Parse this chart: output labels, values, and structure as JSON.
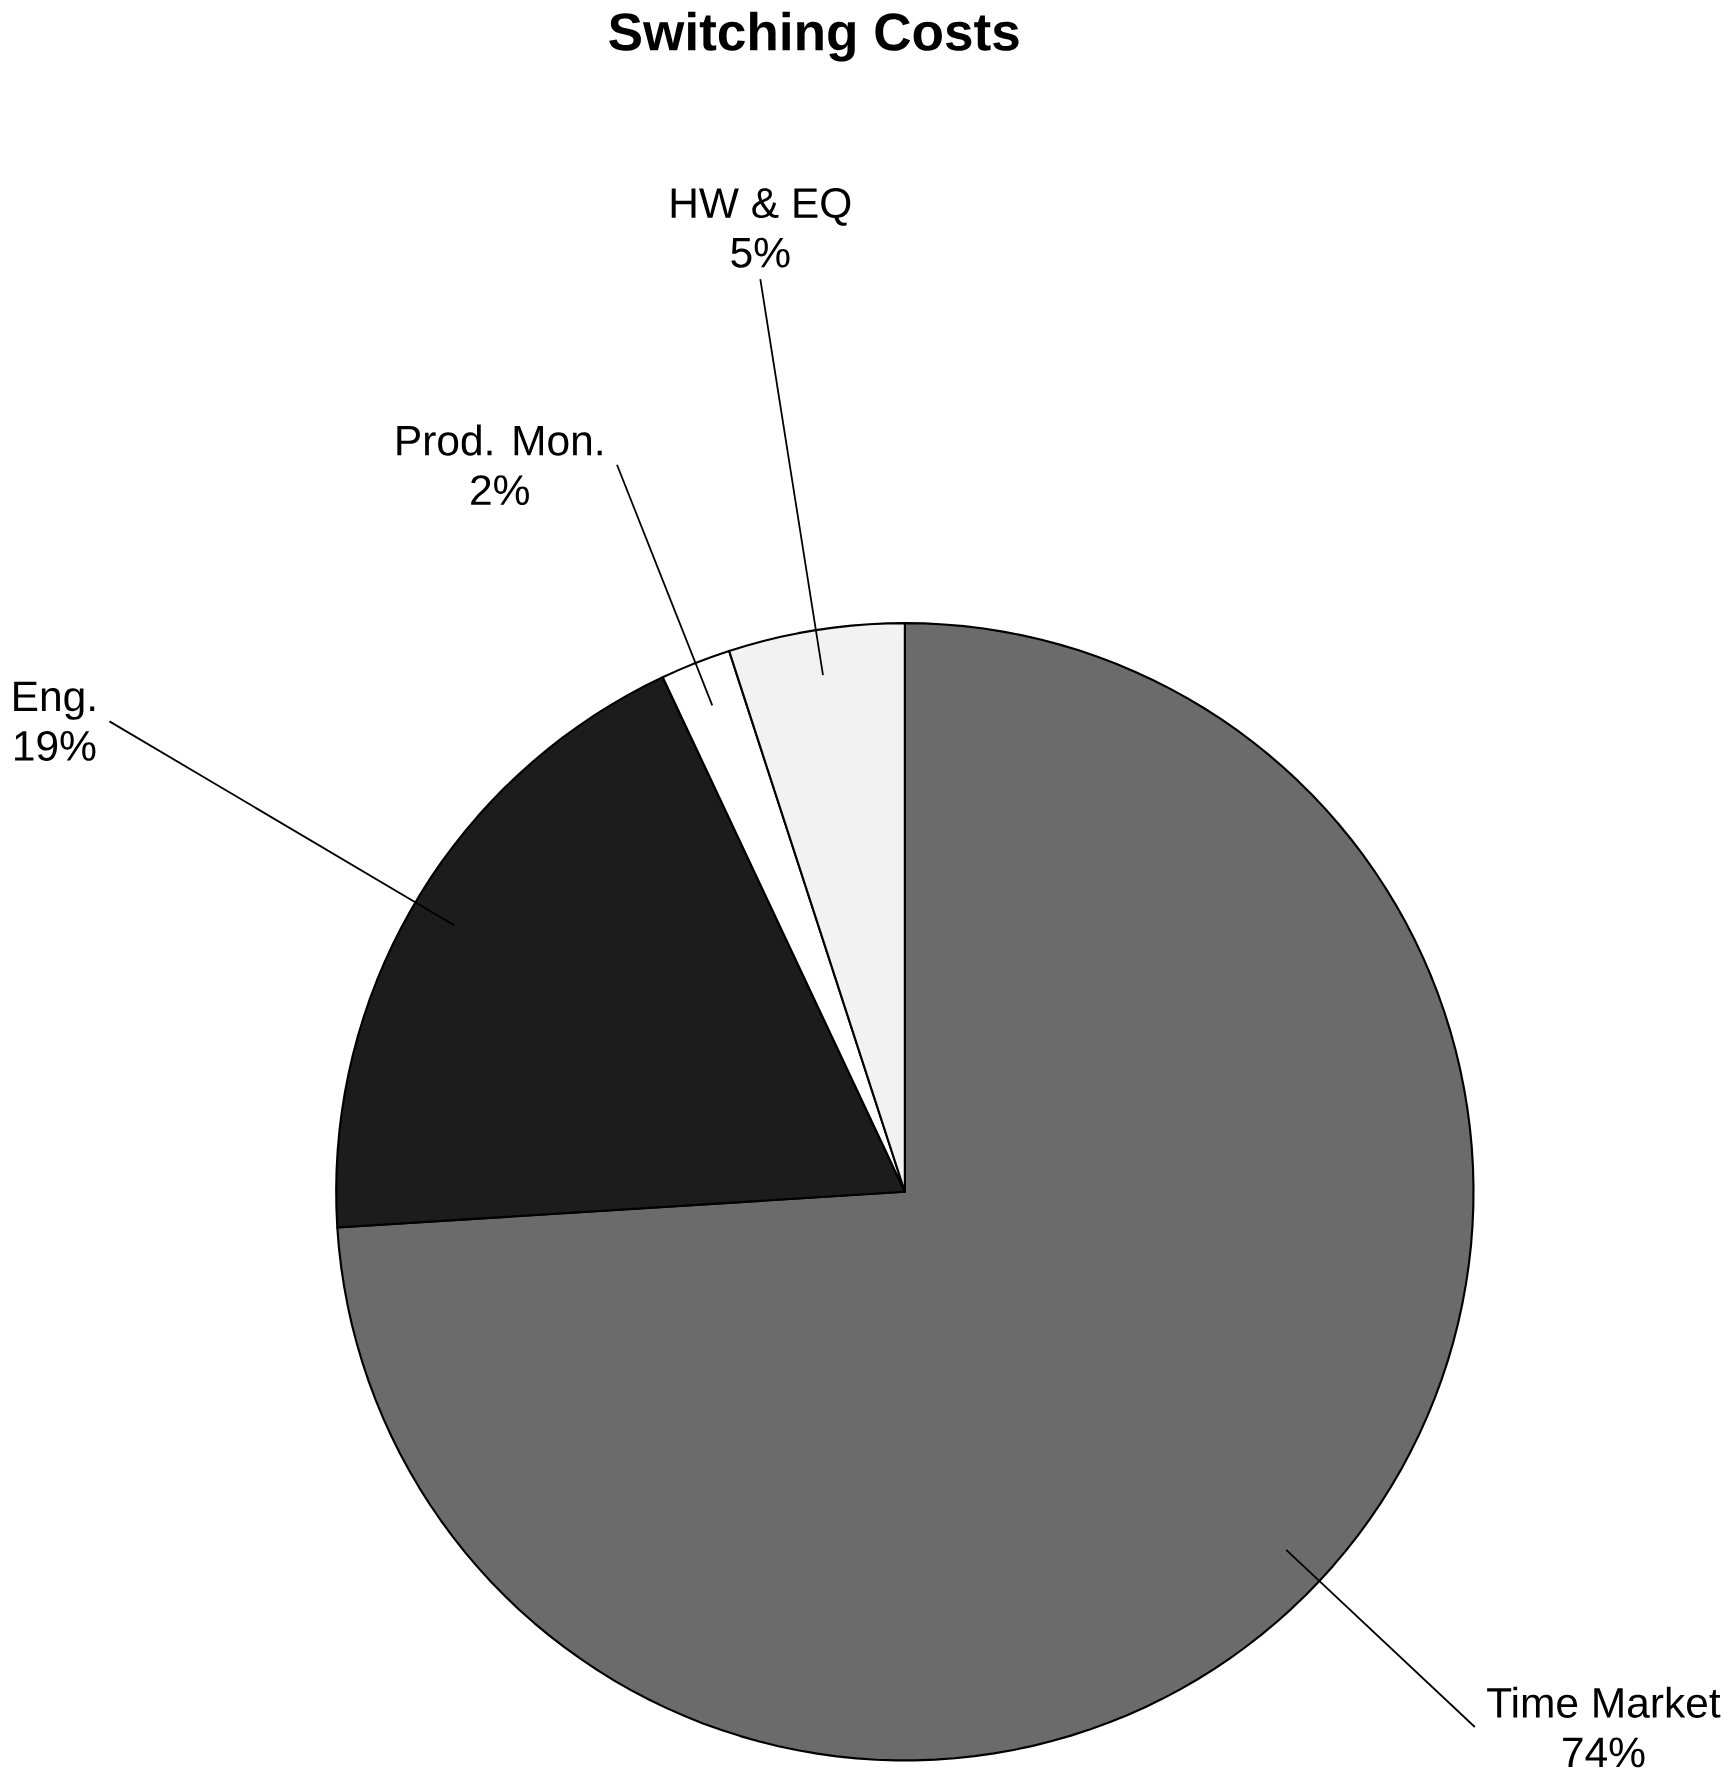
{
  "chart_data": {
    "type": "pie",
    "title": "Switching Costs",
    "categories": [
      "Time Market",
      "Eng.",
      "Prod. Mon.",
      "HW & EQ"
    ],
    "values": [
      74,
      19,
      2,
      5
    ],
    "value_labels": [
      "74%",
      "19%",
      "2%",
      "5%"
    ],
    "colors": [
      "#6b6b6b",
      "#1c1c1c",
      "#ffffff",
      "#f2f2f2"
    ]
  }
}
